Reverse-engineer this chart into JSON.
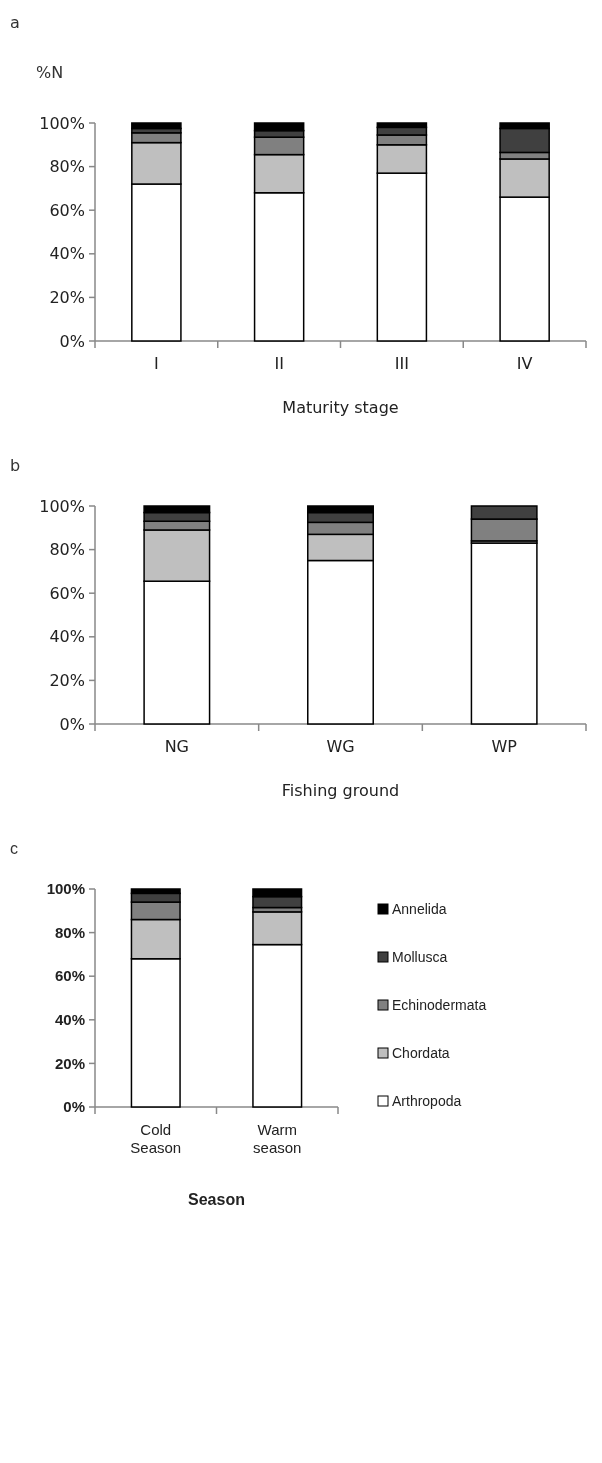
{
  "chart_data": [
    {
      "type": "bar",
      "title": "a",
      "ylabel": "%N",
      "xlabel": "Maturity stage",
      "categories": [
        "I",
        "II",
        "III",
        "IV"
      ],
      "stacked": true,
      "ylim": [
        0,
        100
      ],
      "yticks": [
        {
          "value": 0,
          "label": "0%"
        },
        {
          "value": 20,
          "label": "20%"
        },
        {
          "value": 40,
          "label": "40%"
        },
        {
          "value": 60,
          "label": "60%"
        },
        {
          "value": 80,
          "label": "80%"
        },
        {
          "value": 100,
          "label": "100%"
        }
      ],
      "grid": false,
      "legend": false,
      "series": [
        {
          "color": "#ffffff",
          "values": [
            72,
            68,
            77,
            66
          ]
        },
        {
          "color": "#bfbfbf",
          "values": [
            19,
            17.5,
            13,
            17.5
          ]
        },
        {
          "color": "#808080",
          "values": [
            4.5,
            8,
            4.5,
            3
          ]
        },
        {
          "color": "#404040",
          "values": [
            2,
            3,
            3.5,
            11
          ]
        },
        {
          "color": "#000000",
          "values": [
            2.5,
            3.5,
            2,
            2.5
          ]
        }
      ]
    },
    {
      "type": "bar",
      "title": "b",
      "xlabel": "Fishing ground",
      "categories": [
        "NG",
        "WG",
        "WP"
      ],
      "stacked": true,
      "ylim": [
        0,
        100
      ],
      "yticks": [
        {
          "value": 0,
          "label": "0%"
        },
        {
          "value": 20,
          "label": "20%"
        },
        {
          "value": 40,
          "label": "40%"
        },
        {
          "value": 60,
          "label": "60%"
        },
        {
          "value": 80,
          "label": "80%"
        },
        {
          "value": 100,
          "label": "100%"
        }
      ],
      "grid": false,
      "legend": false,
      "series": [
        {
          "color": "#ffffff",
          "values": [
            65.5,
            75,
            83
          ]
        },
        {
          "color": "#bfbfbf",
          "values": [
            23.5,
            12,
            1
          ]
        },
        {
          "color": "#808080",
          "values": [
            4,
            5.5,
            10
          ]
        },
        {
          "color": "#404040",
          "values": [
            4,
            4.5,
            6
          ]
        },
        {
          "color": "#000000",
          "values": [
            3,
            3,
            0
          ]
        }
      ]
    },
    {
      "type": "bar",
      "title": "c",
      "xlabel": "Season",
      "categories": [
        "Cold Season",
        "Warm season"
      ],
      "stacked": true,
      "ylim": [
        0,
        100
      ],
      "yticks": [
        {
          "value": 0,
          "label": "0%"
        },
        {
          "value": 20,
          "label": "20%"
        },
        {
          "value": 40,
          "label": "40%"
        },
        {
          "value": 60,
          "label": "60%"
        },
        {
          "value": 80,
          "label": "80%"
        },
        {
          "value": 100,
          "label": "100%"
        }
      ],
      "grid": false,
      "legend": "right",
      "series": [
        {
          "name": "Arthropoda",
          "color": "#ffffff",
          "values": [
            68,
            74.5
          ]
        },
        {
          "name": "Chordata",
          "color": "#bfbfbf",
          "values": [
            18,
            15
          ]
        },
        {
          "name": "Echinodermata",
          "color": "#808080",
          "values": [
            8,
            2
          ]
        },
        {
          "name": "Mollusca",
          "color": "#404040",
          "values": [
            4,
            5
          ]
        },
        {
          "name": "Annelida",
          "color": "#000000",
          "values": [
            2,
            3.5
          ]
        }
      ]
    }
  ]
}
